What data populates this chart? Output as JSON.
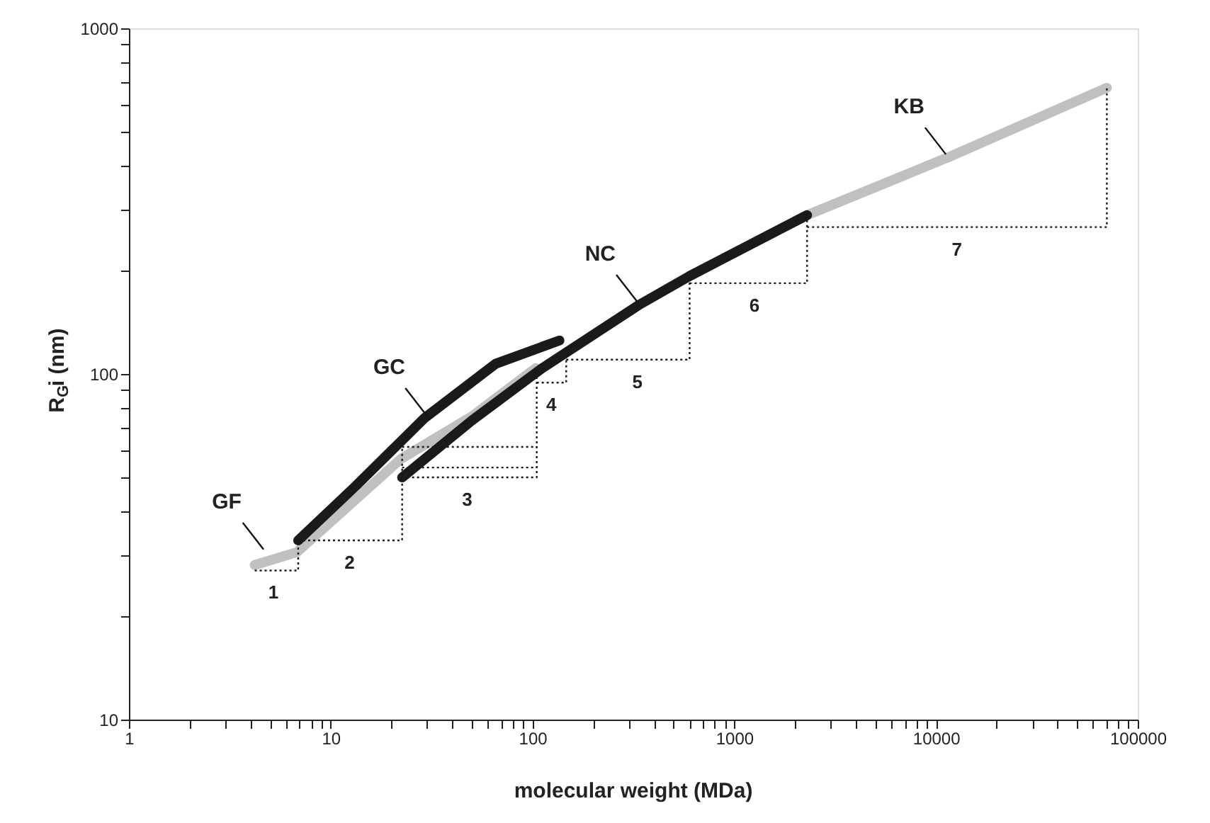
{
  "chart_data": {
    "type": "line",
    "xlabel": "molecular weight (MDa)",
    "ylabel": "R$_{G}$i (nm)",
    "log": "xy",
    "grid": false,
    "marker": "none",
    "xlim": [
      1,
      100000
    ],
    "ylim": [
      10,
      1000
    ],
    "xticks": [
      1,
      {
        "value": 2,
        "label": null
      },
      {
        "value": 3,
        "label": null
      },
      {
        "value": 4,
        "label": null
      },
      {
        "value": 5,
        "label": null
      },
      {
        "value": 6,
        "label": null
      },
      {
        "value": 7,
        "label": null
      },
      {
        "value": 8,
        "label": null
      },
      {
        "value": 9,
        "label": null
      },
      10,
      {
        "value": 20,
        "label": null
      },
      {
        "value": 30,
        "label": null
      },
      {
        "value": 40,
        "label": null
      },
      {
        "value": 50,
        "label": null
      },
      {
        "value": 60,
        "label": null
      },
      {
        "value": 70,
        "label": null
      },
      {
        "value": 80,
        "label": null
      },
      {
        "value": 90,
        "label": null
      },
      100,
      {
        "value": 200,
        "label": null
      },
      {
        "value": 300,
        "label": null
      },
      {
        "value": 400,
        "label": null
      },
      {
        "value": 500,
        "label": null
      },
      {
        "value": 600,
        "label": null
      },
      {
        "value": 700,
        "label": null
      },
      {
        "value": 800,
        "label": null
      },
      {
        "value": 900,
        "label": null
      },
      1000,
      {
        "value": 2000,
        "label": null
      },
      {
        "value": 3000,
        "label": null
      },
      {
        "value": 4000,
        "label": null
      },
      {
        "value": 5000,
        "label": null
      },
      {
        "value": 6000,
        "label": null
      },
      {
        "value": 7000,
        "label": null
      },
      {
        "value": 8000,
        "label": null
      },
      {
        "value": 9000,
        "label": null
      },
      10000,
      {
        "value": 20000,
        "label": null
      },
      {
        "value": 30000,
        "label": null
      },
      {
        "value": 40000,
        "label": null
      },
      {
        "value": 50000,
        "label": null
      },
      {
        "value": 60000,
        "label": null
      },
      {
        "value": 70000,
        "label": null
      },
      {
        "value": 80000,
        "label": null
      },
      {
        "value": 90000,
        "label": null
      },
      100000
    ],
    "yticks": [
      10,
      {
        "value": 20,
        "label": null
      },
      {
        "value": 30,
        "label": null
      },
      {
        "value": 40,
        "label": null
      },
      {
        "value": 50,
        "label": null
      },
      {
        "value": 60,
        "label": null
      },
      {
        "value": 70,
        "label": null
      },
      {
        "value": 80,
        "label": null
      },
      {
        "value": 90,
        "label": null
      },
      100,
      {
        "value": 200,
        "label": null
      },
      {
        "value": 300,
        "label": null
      },
      {
        "value": 400,
        "label": null
      },
      {
        "value": 500,
        "label": null
      },
      {
        "value": 600,
        "label": null
      },
      {
        "value": 700,
        "label": null
      },
      {
        "value": 800,
        "label": null
      },
      {
        "value": 900,
        "label": null
      },
      1000
    ],
    "series": [
      {
        "color": "#c0c0c0",
        "line_style": "solid",
        "x": [
          4.2,
          6.8,
          22.3,
          50,
          104
        ],
        "values": [
          28,
          30.5,
          56.8,
          75.3,
          104
        ]
      },
      {
        "color": "#c0c0c0",
        "line_style": "solid",
        "x": [
          601,
          2297,
          11560,
          70300
        ],
        "values": [
          192,
          288,
          424,
          673
        ]
      },
      {
        "color": "#1a1a1a",
        "line_style": "solid",
        "x": [
          6.9,
          13.1,
          29.3,
          65.7,
          136
        ],
        "values": [
          33,
          47,
          74.7,
          107,
          125
        ]
      },
      {
        "color": "#1a1a1a",
        "line_style": "solid",
        "x": [
          22.6,
          50,
          112,
          341,
          601,
          2297
        ],
        "values": [
          50.2,
          73.3,
          104,
          159,
          192,
          288
        ]
      },
      {
        "color": "#1a1a1a",
        "line_style": "dotted",
        "x": [
          4.2,
          6.9,
          6.9
        ],
        "values": [
          27,
          27,
          33
        ]
      },
      {
        "color": "#1a1a1a",
        "line_style": "dotted",
        "x": [
          6.9,
          22.6,
          22.6
        ],
        "values": [
          33,
          33,
          61.5
        ]
      },
      {
        "color": "#1a1a1a",
        "line_style": "dotted",
        "x": [
          22.6,
          105
        ],
        "values": [
          61.5,
          61.5
        ]
      },
      {
        "color": "#1a1a1a",
        "line_style": "dotted",
        "x": [
          22.6,
          105
        ],
        "values": [
          53.6,
          53.6
        ]
      },
      {
        "color": "#1a1a1a",
        "line_style": "dotted",
        "x": [
          22.6,
          105,
          105
        ],
        "values": [
          50.2,
          50.2,
          104
        ]
      },
      {
        "color": "#1a1a1a",
        "line_style": "dotted",
        "x": [
          105,
          147,
          147
        ],
        "values": [
          94.4,
          94.4,
          110
        ]
      },
      {
        "color": "#1a1a1a",
        "line_style": "dotted",
        "x": [
          147,
          601,
          601
        ],
        "values": [
          110,
          110,
          192
        ]
      },
      {
        "color": "#1a1a1a",
        "line_style": "dotted",
        "x": [
          601,
          2297,
          2297
        ],
        "values": [
          183,
          183,
          288
        ]
      },
      {
        "color": "#1a1a1a",
        "line_style": "dotted",
        "x": [
          2297,
          70300,
          70300
        ],
        "values": [
          266,
          266,
          673
        ]
      }
    ],
    "annotations": [
      {
        "text": "GF",
        "x": 4.8,
        "y": 30.5
      },
      {
        "text": "GC",
        "x": 30.7,
        "y": 74.7
      },
      {
        "text": "NC",
        "x": 341,
        "y": 159
      },
      {
        "text": "KB",
        "x": 11560,
        "y": 424
      },
      {
        "text": "1",
        "x": 5.2,
        "y": 27
      },
      {
        "text": "2",
        "x": 12.4,
        "y": 33
      },
      {
        "text": "3",
        "x": 47.5,
        "y": 50.2
      },
      {
        "text": "4",
        "x": 124,
        "y": 94.4
      },
      {
        "text": "5",
        "x": 331,
        "y": 110
      },
      {
        "text": "6",
        "x": 1260,
        "y": 183
      },
      {
        "text": "7",
        "x": 12700,
        "y": 266
      }
    ]
  }
}
